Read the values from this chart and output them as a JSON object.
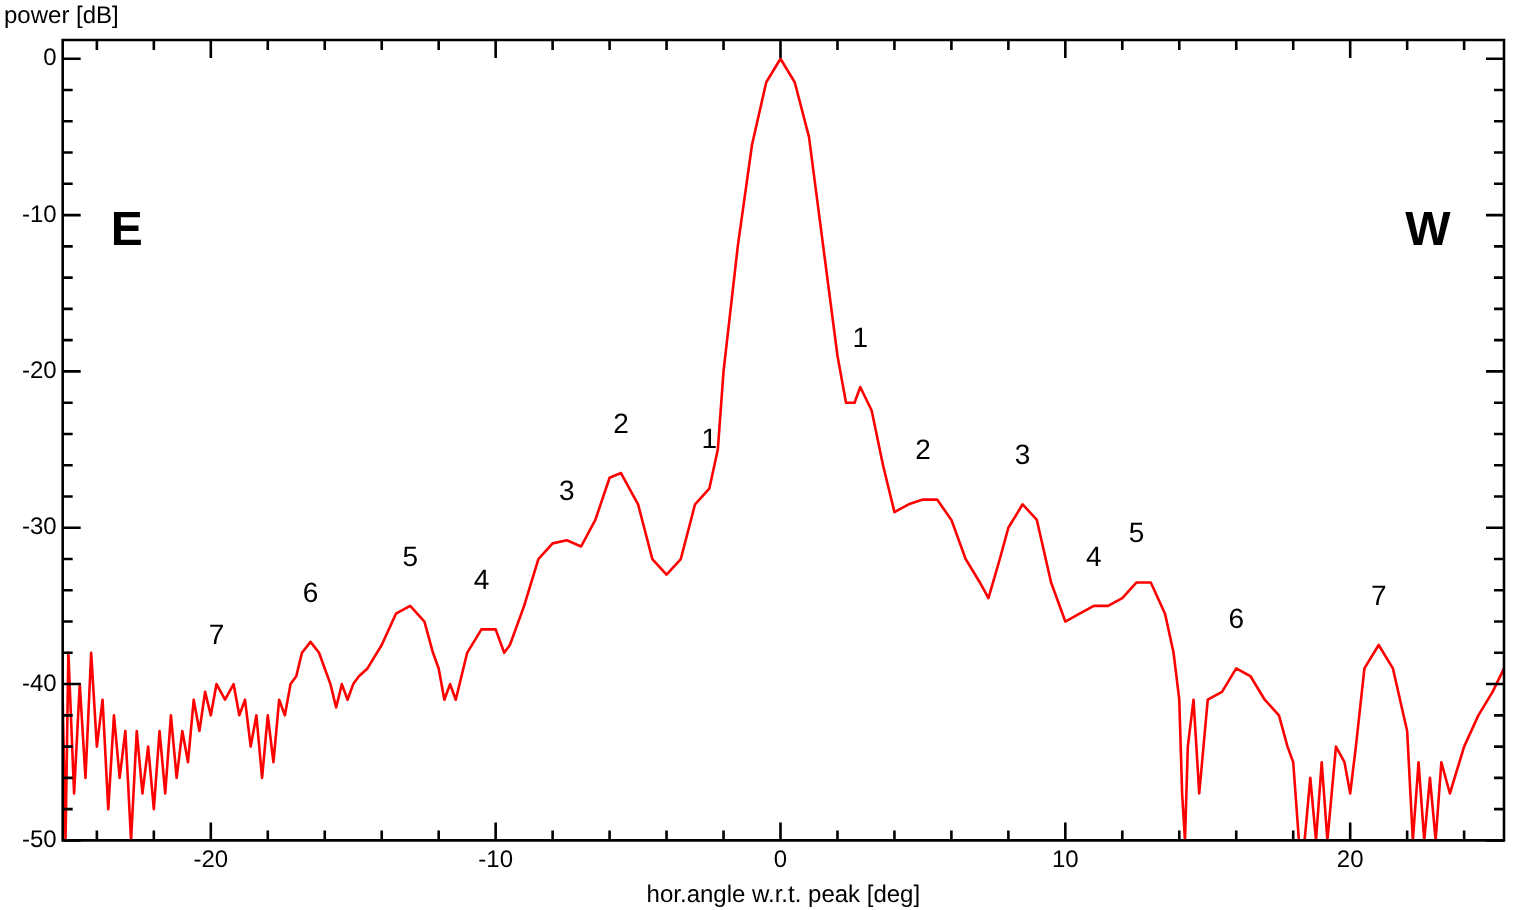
{
  "chart_data": {
    "type": "line",
    "xlabel": "hor.angle w.r.t. peak [deg]",
    "ylabel": "power [dB]",
    "xlim": [
      -25.2,
      25.4
    ],
    "ylim": [
      -50,
      1.2
    ],
    "xticks": [
      {
        "value": -24,
        "label": null
      },
      {
        "value": -22,
        "label": null
      },
      -20,
      {
        "value": -18,
        "label": null
      },
      {
        "value": -16,
        "label": null
      },
      {
        "value": -14,
        "label": null
      },
      {
        "value": -12,
        "label": null
      },
      -10,
      {
        "value": -8,
        "label": null
      },
      {
        "value": -6,
        "label": null
      },
      {
        "value": -4,
        "label": null
      },
      {
        "value": -2,
        "label": null
      },
      0,
      {
        "value": 2,
        "label": null
      },
      {
        "value": 4,
        "label": null
      },
      {
        "value": 6,
        "label": null
      },
      {
        "value": 8,
        "label": null
      },
      10,
      {
        "value": 12,
        "label": null
      },
      {
        "value": 14,
        "label": null
      },
      {
        "value": 16,
        "label": null
      },
      {
        "value": 18,
        "label": null
      },
      20,
      {
        "value": 22,
        "label": null
      },
      {
        "value": 24,
        "label": null
      }
    ],
    "yticks": [
      -50,
      {
        "value": -48,
        "label": null
      },
      {
        "value": -46,
        "label": null
      },
      {
        "value": -44,
        "label": null
      },
      {
        "value": -42,
        "label": null
      },
      -40,
      {
        "value": -38,
        "label": null
      },
      {
        "value": -36,
        "label": null
      },
      {
        "value": -34,
        "label": null
      },
      {
        "value": -32,
        "label": null
      },
      -30,
      {
        "value": -28,
        "label": null
      },
      {
        "value": -26,
        "label": null
      },
      {
        "value": -24,
        "label": null
      },
      {
        "value": -22,
        "label": null
      },
      -20,
      {
        "value": -18,
        "label": null
      },
      {
        "value": -16,
        "label": null
      },
      {
        "value": -14,
        "label": null
      },
      {
        "value": -12,
        "label": null
      },
      -10,
      {
        "value": -8,
        "label": null
      },
      {
        "value": -6,
        "label": null
      },
      {
        "value": -4,
        "label": null
      },
      {
        "value": -2,
        "label": null
      },
      0
    ],
    "marker": "none",
    "line_style": "solid",
    "series": [
      {
        "color": "#ff0000",
        "x": [
          -25.2,
          -25.1,
          -25,
          -24.8,
          -24.6,
          -24.4,
          -24.2,
          -24,
          -23.8,
          -23.6,
          -23.4,
          -23.2,
          -23,
          -22.8,
          -22.6,
          -22.4,
          -22.2,
          -22,
          -21.8,
          -21.6,
          -21.4,
          -21.2,
          -21,
          -20.8,
          -20.6,
          -20.4,
          -20.2,
          -20,
          -19.8,
          -19.5,
          -19.2,
          -19,
          -18.8,
          -18.6,
          -18.4,
          -18.2,
          -18,
          -17.8,
          -17.6,
          -17.4,
          -17.2,
          -17,
          -16.8,
          -16.5,
          -16.2,
          -16,
          -15.8,
          -15.6,
          -15.4,
          -15.2,
          -15,
          -14.8,
          -14.5,
          -14,
          -13.5,
          -13,
          -12.5,
          -12.2,
          -12,
          -11.8,
          -11.6,
          -11.4,
          -11,
          -10.5,
          -10,
          -9.7,
          -9.5,
          -9,
          -8.5,
          -8,
          -7.5,
          -7,
          -6.5,
          -6,
          -5.6,
          -5,
          -4.5,
          -4,
          -3.5,
          -3,
          -2.5,
          -2.2,
          -2,
          -1.5,
          -1,
          -0.5,
          0,
          0.5,
          1,
          1.5,
          2,
          2.3,
          2.6,
          2.8,
          3.2,
          3.6,
          4,
          4.5,
          5,
          5.5,
          6,
          6.5,
          7,
          7.3,
          7.7,
          8,
          8.5,
          9,
          9.5,
          10,
          10.5,
          11,
          11.5,
          12,
          12.5,
          13,
          13.5,
          13.8,
          14,
          14.1,
          14.2,
          14.3,
          14.5,
          14.7,
          15,
          15.5,
          16,
          16.5,
          17,
          17.5,
          17.8,
          18,
          18.2,
          18.4,
          18.6,
          18.8,
          19,
          19.2,
          19.5,
          19.8,
          20,
          20.2,
          20.5,
          21,
          21.5,
          22,
          22.2,
          22.4,
          22.6,
          22.8,
          23,
          23.2,
          23.5,
          24,
          24.5,
          25,
          25.4
        ],
        "values": [
          -41,
          -50,
          -38,
          -47,
          -40,
          -46,
          -38,
          -44,
          -41,
          -48,
          -42,
          -46,
          -43,
          -50,
          -43,
          -47,
          -44,
          -48,
          -43,
          -47,
          -42,
          -46,
          -43,
          -45,
          -41,
          -43,
          -40.5,
          -42,
          -40,
          -41,
          -40,
          -42,
          -41,
          -44,
          -42,
          -46,
          -42,
          -45,
          -41,
          -42,
          -40,
          -39.5,
          -38,
          -37.3,
          -38,
          -39,
          -40,
          -41.5,
          -40,
          -41,
          -40,
          -39.5,
          -39,
          -37.5,
          -35.5,
          -35,
          -36,
          -38,
          -39,
          -41,
          -40,
          -41,
          -38,
          -36.5,
          -36.5,
          -38,
          -37.5,
          -35,
          -32,
          -31,
          -30.8,
          -31.2,
          -29.5,
          -26.8,
          -26.5,
          -28.5,
          -32,
          -33,
          -32,
          -28.5,
          -27.5,
          -25,
          -20,
          -12,
          -5.5,
          -1.5,
          0,
          -1.5,
          -5,
          -12,
          -19,
          -22,
          -22,
          -21,
          -22.5,
          -26,
          -29,
          -28.5,
          -28.2,
          -28.2,
          -29.5,
          -32,
          -33.5,
          -34.5,
          -32,
          -30,
          -28.5,
          -29.5,
          -33.5,
          -36,
          -35.5,
          -35,
          -35,
          -34.5,
          -33.5,
          -33.5,
          -35.5,
          -38,
          -41,
          -47,
          -50,
          -44,
          -41,
          -47,
          -41,
          -40.5,
          -39,
          -39.5,
          -41,
          -42,
          -44,
          -45,
          -50,
          -50,
          -46,
          -50,
          -45,
          -50,
          -44,
          -45,
          -47,
          -44,
          -39,
          -37.5,
          -39,
          -43,
          -50,
          -45,
          -50,
          -46,
          -50,
          -45,
          -47,
          -44,
          -42,
          -40.5,
          -39
        ]
      }
    ],
    "annotations": [
      "E",
      "W",
      {
        "text": "7",
        "x": -19.8,
        "y": -40
      },
      {
        "text": "6",
        "x": -16.5,
        "y": -37.3
      },
      {
        "text": "5",
        "x": -13,
        "y": -35
      },
      {
        "text": "4",
        "x": -10.5,
        "y": -36.5
      },
      {
        "text": "3",
        "x": -7.5,
        "y": -30.8
      },
      {
        "text": "2",
        "x": -5.6,
        "y": -26.5
      },
      {
        "text": "1",
        "x": -2.5,
        "y": -27.5
      },
      {
        "text": "1",
        "x": 2.8,
        "y": -21
      },
      {
        "text": "2",
        "x": 5,
        "y": -28.2
      },
      {
        "text": "3",
        "x": 8.5,
        "y": -28.5
      },
      {
        "text": "4",
        "x": 11,
        "y": -35
      },
      {
        "text": "5",
        "x": 12.5,
        "y": -33.5
      },
      {
        "text": "6",
        "x": 16,
        "y": -39
      },
      {
        "text": "7",
        "x": 21,
        "y": -37.5
      }
    ]
  }
}
